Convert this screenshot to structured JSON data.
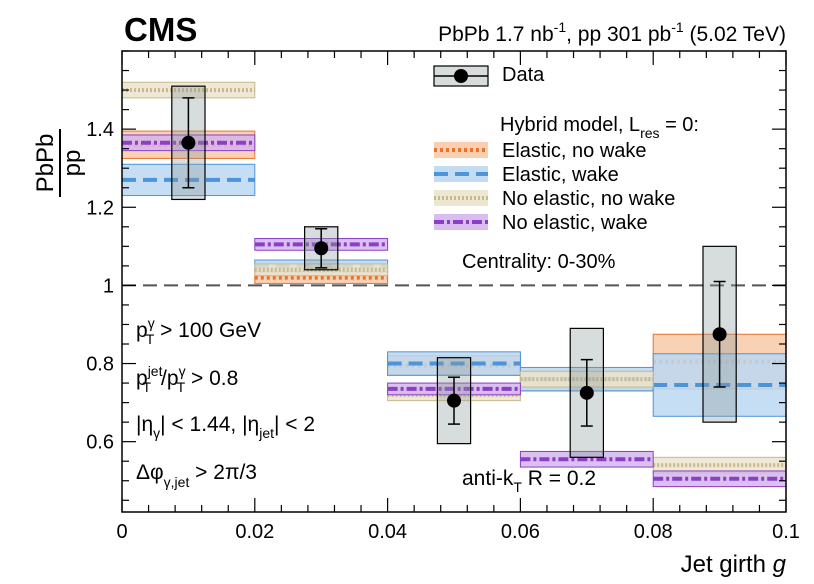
{
  "chart_data": {
    "type": "scatter",
    "experiment": "CMS",
    "lumi_label": {
      "part1": "PbPb 1.7 nb",
      "sup1": "-1",
      "part2": ", pp 301 pb",
      "sup2": "-1",
      "part3": " (5.02 TeV)"
    },
    "xlabel": "Jet girth",
    "xlabel_var": "g",
    "ylabel": {
      "num": "PbPb",
      "den": "pp"
    },
    "xlim": [
      0,
      0.1
    ],
    "ylim": [
      0.42,
      1.6
    ],
    "x_ticks": [
      0,
      0.02,
      0.04,
      0.06,
      0.08,
      0.1
    ],
    "x_tick_labels": [
      "0",
      "0.02",
      "0.04",
      "0.06",
      "0.08",
      "0.1"
    ],
    "y_ticks": [
      0.6,
      0.8,
      1.0,
      1.2,
      1.4
    ],
    "y_tick_labels": [
      "0.6",
      "0.8",
      "1",
      "1.2",
      "1.4"
    ],
    "reference_line": 1.0,
    "bins": [
      [
        0,
        0.02
      ],
      [
        0.02,
        0.04
      ],
      [
        0.04,
        0.06
      ],
      [
        0.06,
        0.08
      ],
      [
        0.08,
        0.1
      ]
    ],
    "data": {
      "name": "Data",
      "x": [
        0.01,
        0.03,
        0.05,
        0.07,
        0.09
      ],
      "y": [
        1.365,
        1.095,
        0.705,
        0.725,
        0.875
      ],
      "stat_err": [
        0.115,
        0.05,
        0.06,
        0.085,
        0.135
      ],
      "syst_err": [
        0.145,
        0.055,
        0.11,
        0.165,
        0.225
      ],
      "syst_halfwidth": 0.0025
    },
    "model_title": "Hybrid model, L",
    "model_title_sub": "res",
    "model_title_tail": " = 0:",
    "models": [
      {
        "name": "Elastic, no wake",
        "color": "#e8742c",
        "fill": "#f8c9a8",
        "style": "dotted",
        "values": [
          1.36,
          1.02,
          0.795,
          0.755,
          0.805
        ],
        "unc": [
          0.035,
          0.015,
          0.025,
          0.025,
          0.07
        ]
      },
      {
        "name": "Elastic, wake",
        "color": "#4d94d8",
        "fill": "#bcd8f1",
        "style": "dashed",
        "values": [
          1.27,
          1.05,
          0.8,
          0.76,
          0.745
        ],
        "unc": [
          0.04,
          0.015,
          0.03,
          0.03,
          0.08
        ]
      },
      {
        "name": "No elastic, no wake",
        "color": "#c7b98e",
        "fill": "#ebe4cd",
        "style": "fine-dotted",
        "values": [
          1.5,
          1.04,
          0.72,
          0.76,
          0.54
        ],
        "unc": [
          0.02,
          0.015,
          0.015,
          0.02,
          0.02
        ]
      },
      {
        "name": "No elastic, wake",
        "color": "#8a3fc6",
        "fill": "#d5b6ec",
        "style": "dash-dot",
        "values": [
          1.365,
          1.105,
          0.735,
          0.555,
          0.505
        ],
        "unc": [
          0.02,
          0.015,
          0.015,
          0.02,
          0.02
        ]
      }
    ],
    "centrality_label": "Centrality: 0-30%",
    "cuts": {
      "pt": {
        "p": "p",
        "sup": "γ",
        "sub": "T",
        "rest": " > 100 GeV"
      },
      "ratio": {
        "p1": "p",
        "sup1": "jet",
        "sub1": "T",
        "slash": "/",
        "p2": "p",
        "sup2": "γ",
        "sub2": "T",
        "rest": " > 0.8"
      },
      "eta": {
        "a": "|η",
        "sub1": "γ",
        "b": "| < 1.44, |η",
        "sub2": "jet",
        "c": "| < 2"
      },
      "phi": {
        "a": "Δφ",
        "sub": "γ,jet",
        "rest": " > 2π/3"
      }
    },
    "jet_algo": {
      "a": "anti-k",
      "sub": "T",
      "rest": " R = 0.2"
    }
  }
}
